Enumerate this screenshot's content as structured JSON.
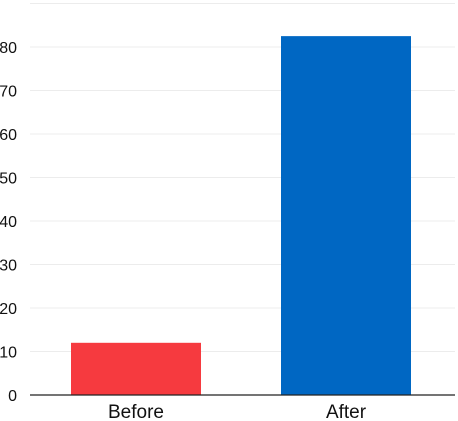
{
  "chart_data": {
    "type": "bar",
    "categories": [
      "Before",
      "After"
    ],
    "values": [
      12,
      82.5
    ],
    "ylim": [
      0,
      90
    ],
    "yticks": [
      0,
      10,
      20,
      30,
      40,
      50,
      60,
      70,
      80
    ],
    "grid": true,
    "title": "",
    "xlabel": "",
    "ylabel": "",
    "colors": [
      "#f63a3f",
      "#0067c3"
    ]
  }
}
